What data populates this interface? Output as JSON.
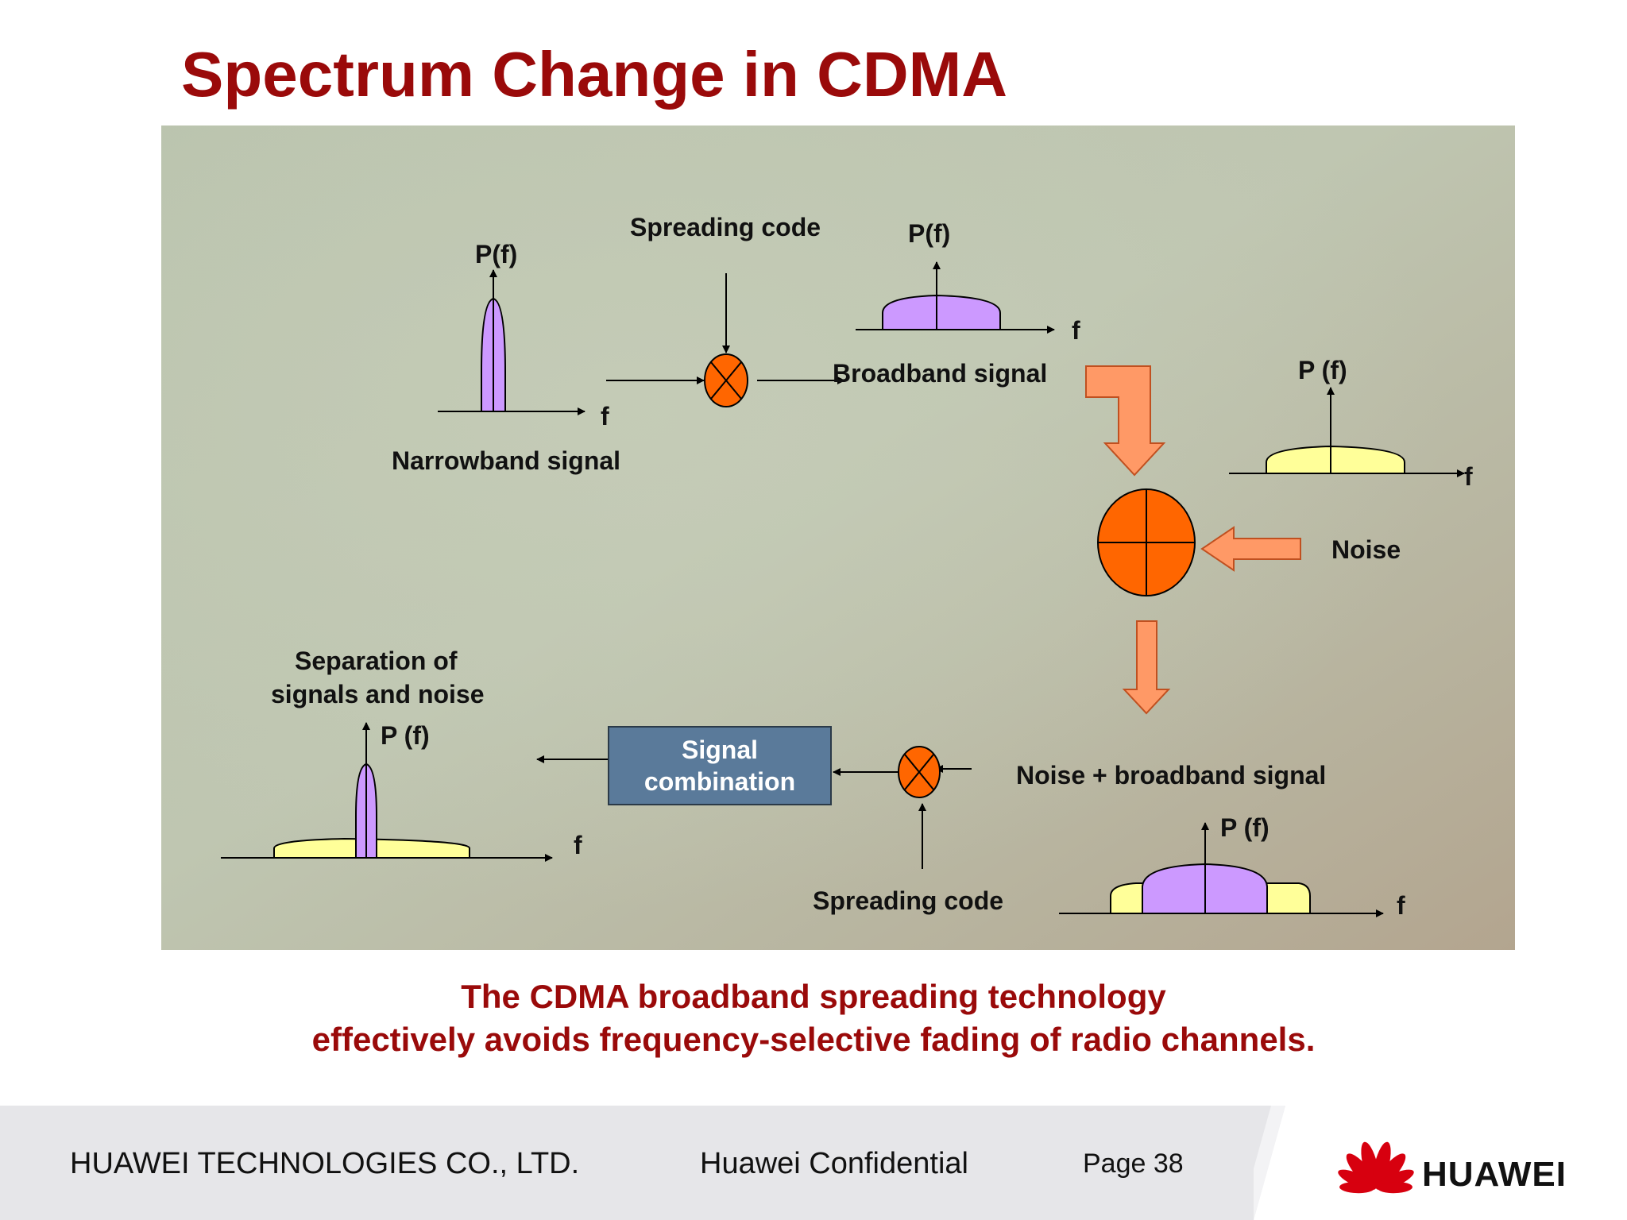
{
  "slide": {
    "title": "Spectrum Change in CDMA"
  },
  "diagram": {
    "labels": {
      "pf_narrow": "P(f)",
      "f_narrow": "f",
      "narrowband_signal": "Narrowband signal",
      "spreading_code_top": "Spreading code",
      "pf_broad": "P(f)",
      "f_broad": "f",
      "broadband_signal": "Broadband signal",
      "pf_noise": "P (f)",
      "f_noise": "f",
      "noise": "Noise",
      "noise_plus_broadband": "Noise + broadband signal",
      "pf_combined": "P (f)",
      "f_combined": "f",
      "spreading_code_bottom": "Spreading code",
      "signal_combination_line1": "Signal",
      "signal_combination_line2": "combination",
      "separation_line1": "Separation of",
      "separation_line2": "signals and noise",
      "pf_separated": "P (f)",
      "f_separated": "f"
    },
    "colors": {
      "background_green": "#bac4ac",
      "background_tan": "#b6aa96",
      "narrowband_fill": "#cc99ff",
      "noise_fill": "#ffff99",
      "mixer_fill": "#ff6600",
      "arrow_fill": "#ff9966",
      "combination_box": "#5a7a9a"
    }
  },
  "conclusion": {
    "line1": "The CDMA broadband spreading technology",
    "line2": "effectively avoids frequency-selective fading of radio channels."
  },
  "footer": {
    "company": "HUAWEI TECHNOLOGIES CO., LTD.",
    "confidential": "Huawei Confidential",
    "page": "Page 38",
    "logo_text": "HUAWEI",
    "logo_icon": "huawei-petal-logo"
  }
}
